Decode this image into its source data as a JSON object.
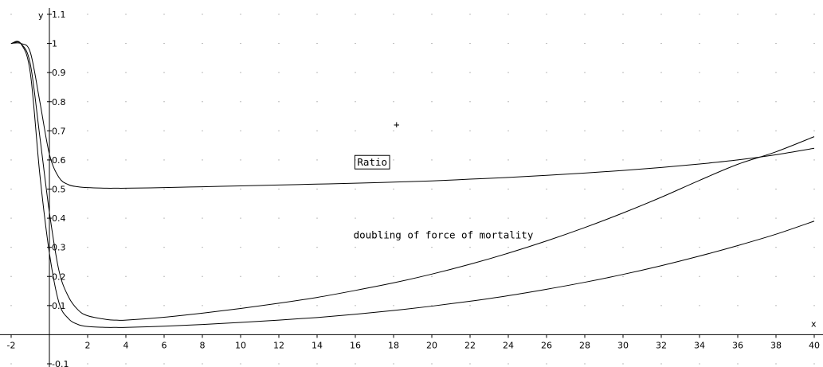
{
  "chart_data": {
    "type": "line",
    "xlabel": "x",
    "ylabel": "y",
    "xlim": [
      -2,
      40
    ],
    "ylim": [
      -0.1,
      1.1
    ],
    "grid": "dots",
    "x_ticks": [
      -2,
      2,
      4,
      6,
      8,
      10,
      12,
      14,
      16,
      18,
      20,
      22,
      24,
      26,
      28,
      30,
      32,
      34,
      36,
      38,
      40
    ],
    "x_tick_labels": [
      "-2",
      "2",
      "4",
      "6",
      "8",
      "10",
      "12",
      "14",
      "16",
      "18",
      "20",
      "22",
      "24",
      "26",
      "28",
      "30",
      "32",
      "34",
      "36",
      "38",
      "40"
    ],
    "y_ticks": [
      -0.1,
      0.1,
      0.2,
      0.3,
      0.4,
      0.5,
      0.6,
      0.7,
      0.8,
      0.9,
      1,
      1.1
    ],
    "y_tick_labels": [
      "-0.1",
      "0.1",
      "0.2",
      "0.3",
      "0.4",
      "0.5",
      "0.6",
      "0.7",
      "0.8",
      "0.9",
      "1",
      "1.1"
    ],
    "series": [
      {
        "x": [
          -2,
          -1.5,
          -1,
          -0.5,
          0,
          0.5,
          1,
          1.5,
          2,
          3,
          3.5,
          4,
          6,
          8,
          10,
          12,
          14,
          16,
          18,
          20,
          22,
          24,
          26,
          28,
          30,
          32,
          34,
          36,
          38,
          40
        ],
        "y": [
          1,
          1,
          0.97,
          0.8,
          0.62,
          0.54,
          0.515,
          0.508,
          0.505,
          0.503,
          0.503,
          0.503,
          0.505,
          0.508,
          0.511,
          0.514,
          0.517,
          0.52,
          0.524,
          0.528,
          0.534,
          0.54,
          0.547,
          0.555,
          0.564,
          0.574,
          0.586,
          0.6,
          0.618,
          0.64
        ]
      },
      {
        "x": [
          -2,
          -1.5,
          -1,
          -0.5,
          0,
          0.5,
          1,
          1.5,
          2,
          3,
          3.5,
          4,
          6,
          8,
          10,
          12,
          14,
          16,
          18,
          20,
          22,
          24,
          26,
          28,
          30,
          32,
          34,
          36,
          38,
          40
        ],
        "y": [
          1,
          1,
          0.93,
          0.68,
          0.42,
          0.22,
          0.13,
          0.085,
          0.065,
          0.052,
          0.05,
          0.05,
          0.06,
          0.074,
          0.09,
          0.108,
          0.128,
          0.152,
          0.178,
          0.208,
          0.242,
          0.28,
          0.322,
          0.368,
          0.418,
          0.472,
          0.53,
          0.585,
          0.628,
          0.68
        ]
      },
      {
        "x": [
          -2,
          -1.5,
          -1,
          -0.5,
          0,
          0.5,
          1,
          1.5,
          2,
          3,
          3.5,
          4,
          6,
          8,
          10,
          12,
          14,
          16,
          18,
          20,
          22,
          24,
          26,
          28,
          30,
          32,
          34,
          36,
          38,
          40
        ],
        "y": [
          1,
          1,
          0.9,
          0.55,
          0.28,
          0.11,
          0.055,
          0.035,
          0.028,
          0.025,
          0.025,
          0.025,
          0.029,
          0.035,
          0.042,
          0.05,
          0.059,
          0.07,
          0.083,
          0.098,
          0.115,
          0.134,
          0.156,
          0.18,
          0.207,
          0.237,
          0.27,
          0.306,
          0.345,
          0.39
        ]
      }
    ],
    "annotations": [
      {
        "text": "Ratio",
        "x": 16.1,
        "y": 0.58,
        "boxed": true
      },
      {
        "text": "doubling of force of mortality",
        "x": 15.9,
        "y": 0.33,
        "boxed": false
      },
      {
        "text": "+",
        "x": 18.0,
        "y": 0.71,
        "boxed": false
      }
    ]
  }
}
